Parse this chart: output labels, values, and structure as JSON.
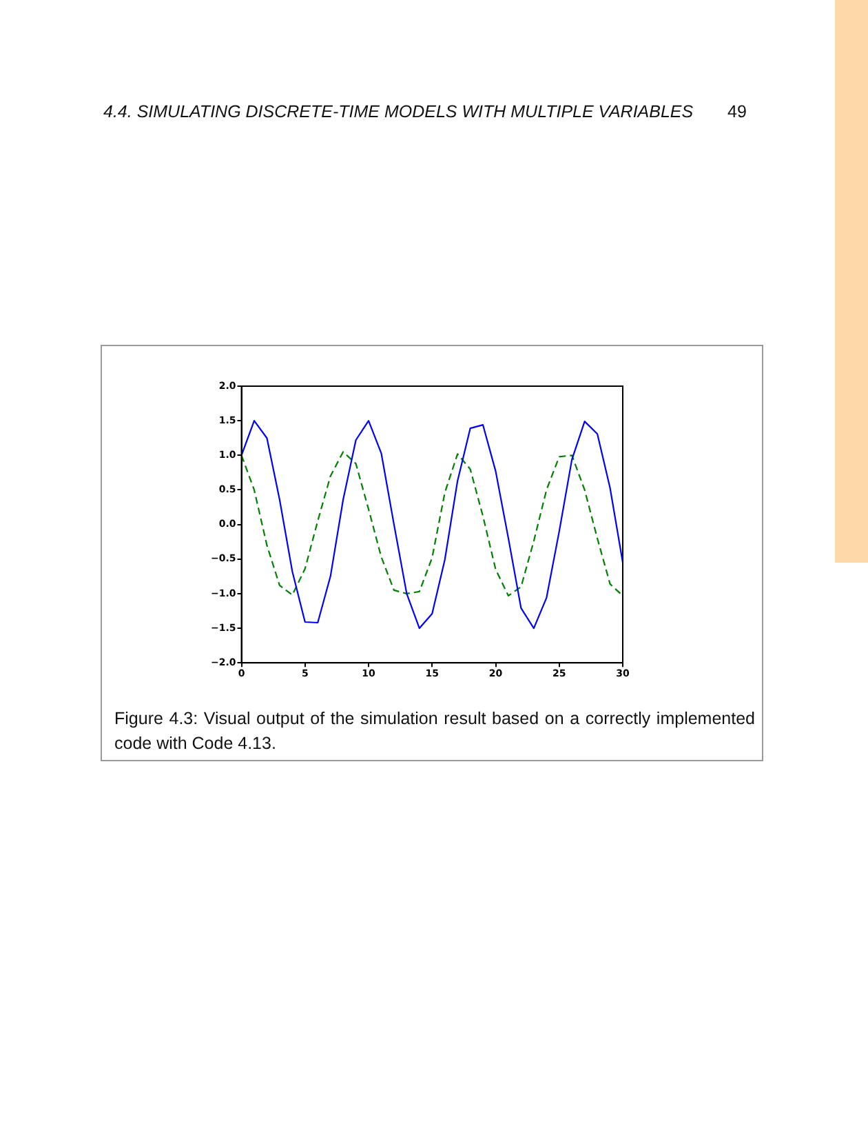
{
  "chart_data": {
    "type": "line",
    "x": [
      0,
      1,
      2,
      3,
      4,
      5,
      6,
      7,
      8,
      9,
      10,
      11,
      12,
      13,
      14,
      15,
      16,
      17,
      18,
      19,
      20,
      21,
      22,
      23,
      24,
      25,
      26,
      27,
      28,
      29,
      30
    ],
    "series": [
      {
        "color": "#0000ff",
        "line_style": "solid",
        "values": [
          1.0,
          1.5,
          1.25,
          0.36,
          -0.68,
          -1.41,
          -1.42,
          -0.75,
          0.36,
          1.22,
          1.5,
          1.03,
          0.0,
          -1.0,
          -1.5,
          -1.29,
          -0.51,
          0.63,
          1.39,
          1.44,
          0.77,
          -0.2,
          -1.21,
          -1.5,
          -1.06,
          -0.1,
          0.94,
          1.49,
          1.31,
          0.53,
          -0.55
        ]
      },
      {
        "color": "#008000",
        "line_style": "dashed",
        "values": [
          1.0,
          0.5,
          -0.3,
          -0.88,
          -1.02,
          -0.64,
          0.05,
          0.7,
          1.05,
          0.88,
          0.22,
          -0.47,
          -0.95,
          -1.0,
          -0.97,
          -0.48,
          0.46,
          1.02,
          0.8,
          0.12,
          -0.65,
          -1.03,
          -0.9,
          -0.24,
          0.5,
          0.98,
          1.0,
          0.5,
          -0.2,
          -0.86,
          -1.03
        ]
      }
    ],
    "xlim": [
      0,
      30
    ],
    "xticks": [
      0,
      5,
      10,
      15,
      20,
      25,
      30
    ],
    "ylim": [
      -2.0,
      2.0
    ],
    "yticks": [
      {
        "value": -2,
        "label": "−2.0"
      },
      {
        "value": -1.5,
        "label": "−1.5"
      },
      {
        "value": -1,
        "label": "−1.0"
      },
      {
        "value": -0.5,
        "label": "−0.5"
      },
      {
        "value": 0,
        "label": "0.0"
      },
      {
        "value": 0.5,
        "label": "0.5"
      },
      {
        "value": 1,
        "label": "1.0"
      },
      {
        "value": 1.5,
        "label": "1.5"
      },
      {
        "value": 2,
        "label": "2.0"
      }
    ],
    "grid": false,
    "legend": false,
    "marker": "none",
    "annotations": [
      "4.4.  SIMULATING DISCRETE-TIME MODELS WITH MULTIPLE VARIABLES",
      "49",
      "Figure 4.3: Visual output of the simulation result based on a correctly implemented code with Code 4.13."
    ]
  }
}
